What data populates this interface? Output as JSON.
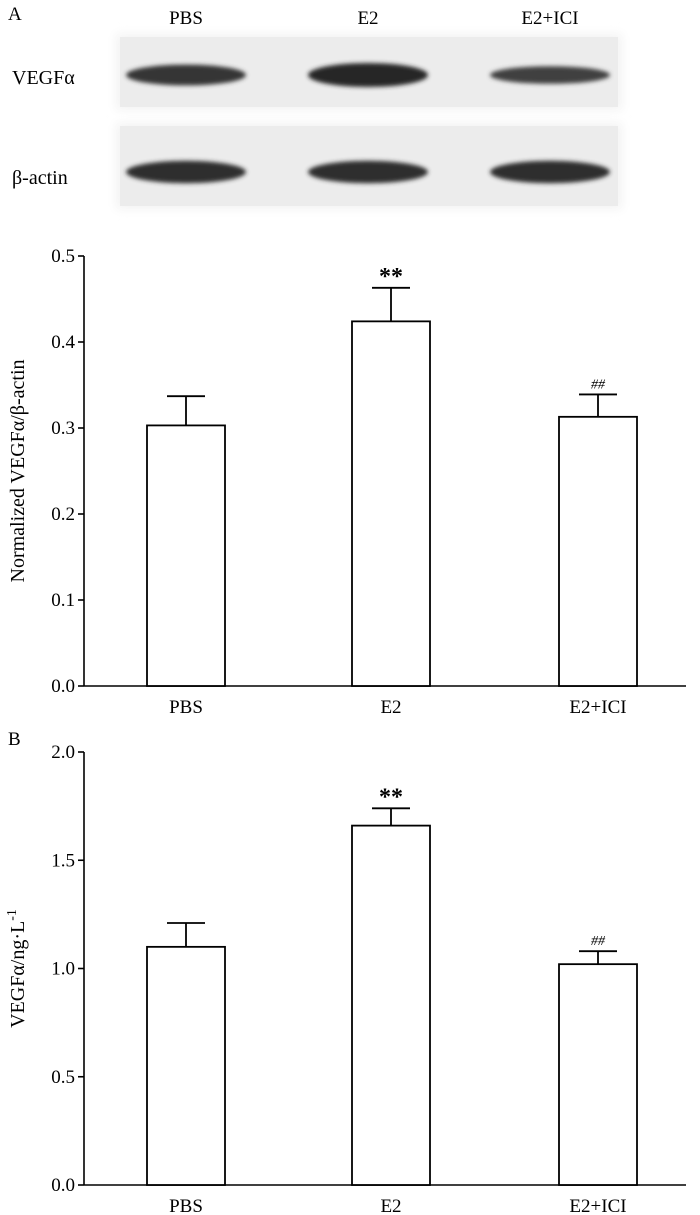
{
  "panel_a": {
    "letter": "A",
    "blot": {
      "lanes": [
        "PBS",
        "E2",
        "E2+ICI"
      ],
      "rows": [
        {
          "label": "VEGFα",
          "intensity": [
            0.8,
            1.0,
            0.6
          ]
        },
        {
          "label": "β-actin",
          "intensity": [
            0.9,
            0.9,
            0.9
          ]
        }
      ]
    }
  },
  "panel_b": {
    "letter": "B"
  },
  "chart_data": [
    {
      "type": "bar",
      "title": "",
      "xlabel": "",
      "ylabel": "Normalized VEGFα/β-actin",
      "categories": [
        "PBS",
        "E2",
        "E2+ICI"
      ],
      "values": [
        0.303,
        0.424,
        0.313
      ],
      "errors": [
        0.034,
        0.039,
        0.026
      ],
      "annotations": [
        "",
        "**",
        "##"
      ],
      "ylim": [
        0.0,
        0.5
      ],
      "yticks": [
        "0.0",
        "0.1",
        "0.2",
        "0.3",
        "0.4",
        "0.5"
      ],
      "grid": false
    },
    {
      "type": "bar",
      "title": "",
      "xlabel": "",
      "ylabel": "VEGFα/ng·L",
      "ylabel_superscript": "-1",
      "categories": [
        "PBS",
        "E2",
        "E2+ICI"
      ],
      "values": [
        1.1,
        1.66,
        1.02
      ],
      "errors": [
        0.11,
        0.08,
        0.06
      ],
      "annotations": [
        "",
        "**",
        "##"
      ],
      "ylim": [
        0.0,
        2.0
      ],
      "yticks": [
        "0.0",
        "0.5",
        "1.0",
        "1.5",
        "2.0"
      ],
      "grid": false
    }
  ]
}
